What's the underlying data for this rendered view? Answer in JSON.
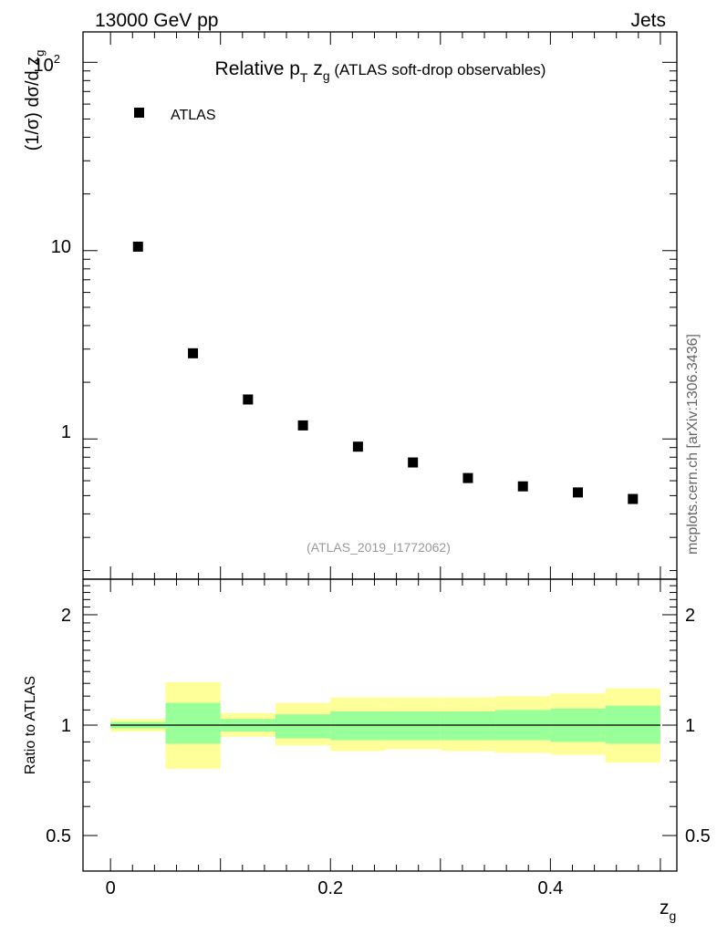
{
  "header": {
    "energy_label": "13000 GeV pp",
    "process_label": "Jets"
  },
  "watermark": "mcplots.cern.ch [arXiv:1306.3436]",
  "analysis_id": "(ATLAS_2019_I1772062)",
  "chart_data": [
    {
      "type": "scatter",
      "title_main": "Relative p",
      "title_sub_T": "T",
      "title_z": " z",
      "title_sub_g": "g",
      "title_rest": " (ATLAS soft-drop observables)",
      "ylabel": "(1/σ) dσ/d z",
      "ylabel_sub": "g",
      "yscale": "log",
      "ylim": [
        0.18,
        145
      ],
      "xlim": [
        -0.025,
        0.515
      ],
      "ytick_labels": {
        "t10": "10",
        "t1": "1",
        "t100_base": "10",
        "t100_exp": "2"
      },
      "legend": {
        "position": "top-left",
        "entries": [
          {
            "name": "ATLAS",
            "marker": "square",
            "color": "#000000"
          }
        ]
      },
      "series": [
        {
          "name": "ATLAS",
          "x": [
            0.025,
            0.075,
            0.125,
            0.175,
            0.225,
            0.275,
            0.325,
            0.375,
            0.425,
            0.475
          ],
          "y": [
            10.5,
            2.85,
            1.62,
            1.18,
            0.91,
            0.75,
            0.62,
            0.56,
            0.52,
            0.48
          ]
        }
      ]
    },
    {
      "type": "area",
      "ylabel": "Ratio to ATLAS",
      "xlabel": "z",
      "xlabel_sub": "g",
      "yscale": "log",
      "ylim": [
        0.4,
        2.5
      ],
      "xlim": [
        -0.025,
        0.515
      ],
      "ytick_labels": [
        "0.5",
        "1",
        "2"
      ],
      "ytick_values": [
        0.5,
        1,
        2
      ],
      "xtick_labels": [
        "0",
        "0.2",
        "0.4"
      ],
      "xtick_values": [
        0,
        0.2,
        0.4
      ],
      "bin_edges": [
        0.0,
        0.05,
        0.1,
        0.15,
        0.2,
        0.25,
        0.3,
        0.35,
        0.4,
        0.45,
        0.5
      ],
      "band_outer": {
        "color": "#ffff99",
        "low": [
          0.96,
          0.76,
          0.93,
          0.88,
          0.85,
          0.86,
          0.85,
          0.84,
          0.83,
          0.79
        ],
        "high": [
          1.04,
          1.31,
          1.08,
          1.15,
          1.19,
          1.19,
          1.19,
          1.2,
          1.22,
          1.26
        ]
      },
      "band_inner": {
        "color": "#99ff99",
        "low": [
          0.98,
          0.89,
          0.96,
          0.92,
          0.91,
          0.91,
          0.91,
          0.91,
          0.9,
          0.89
        ],
        "high": [
          1.02,
          1.15,
          1.04,
          1.07,
          1.09,
          1.09,
          1.09,
          1.1,
          1.11,
          1.13
        ]
      },
      "reference_line": 1.0
    }
  ]
}
